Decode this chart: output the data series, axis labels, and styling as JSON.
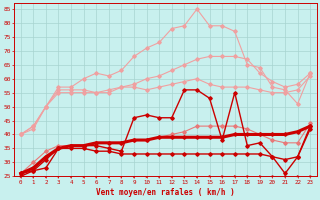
{
  "xlabel": "Vent moyen/en rafales ( km/h )",
  "background_color": "#c8f0ee",
  "grid_color": "#a8d4d0",
  "x_ticks": [
    0,
    1,
    2,
    3,
    4,
    5,
    6,
    7,
    8,
    9,
    10,
    11,
    12,
    13,
    14,
    15,
    16,
    17,
    18,
    19,
    20,
    21,
    22,
    23
  ],
  "ylim": [
    25,
    87
  ],
  "yticks": [
    25,
    30,
    35,
    40,
    45,
    50,
    55,
    60,
    65,
    70,
    75,
    80,
    85
  ],
  "line_light1": {
    "color": "#f0a0a0",
    "lw": 0.8,
    "marker": "D",
    "ms": 1.8,
    "values": [
      40,
      43,
      50,
      56,
      56,
      56,
      55,
      55,
      57,
      58,
      60,
      61,
      63,
      65,
      67,
      68,
      68,
      68,
      67,
      62,
      59,
      57,
      58,
      62
    ]
  },
  "line_light2": {
    "color": "#f0a0a0",
    "lw": 0.8,
    "marker": "D",
    "ms": 1.8,
    "values": [
      40,
      43,
      50,
      57,
      57,
      60,
      62,
      61,
      63,
      68,
      71,
      73,
      78,
      79,
      85,
      79,
      79,
      77,
      65,
      64,
      57,
      56,
      51,
      62
    ]
  },
  "line_light3": {
    "color": "#f0a0a0",
    "lw": 0.8,
    "marker": "D",
    "ms": 1.8,
    "values": [
      40,
      42,
      50,
      55,
      55,
      55,
      55,
      56,
      57,
      57,
      56,
      57,
      58,
      59,
      60,
      58,
      57,
      57,
      57,
      56,
      55,
      55,
      56,
      61
    ]
  },
  "line_medium1": {
    "color": "#e87878",
    "lw": 0.8,
    "marker": "D",
    "ms": 1.8,
    "values": [
      26,
      30,
      34,
      36,
      36,
      36,
      37,
      37,
      37,
      38,
      38,
      39,
      40,
      41,
      43,
      43,
      43,
      43,
      42,
      40,
      38,
      37,
      37,
      44
    ]
  },
  "line_bold": {
    "color": "#cc0000",
    "lw": 2.2,
    "marker": "D",
    "ms": 1.8,
    "values": [
      26,
      28,
      32,
      35,
      36,
      36,
      37,
      37,
      37,
      38,
      38,
      39,
      39,
      39,
      39,
      39,
      39,
      40,
      40,
      40,
      40,
      40,
      41,
      43
    ]
  },
  "line_dark1": {
    "color": "#cc0000",
    "lw": 1.0,
    "marker": "D",
    "ms": 1.8,
    "values": [
      26,
      27,
      28,
      35,
      35,
      35,
      34,
      34,
      33,
      33,
      33,
      33,
      33,
      33,
      33,
      33,
      33,
      33,
      33,
      33,
      32,
      31,
      32,
      42
    ]
  },
  "line_dark2": {
    "color": "#cc0000",
    "lw": 1.0,
    "marker": "D",
    "ms": 1.8,
    "values": [
      25,
      27,
      31,
      35,
      36,
      36,
      36,
      35,
      34,
      46,
      47,
      46,
      46,
      56,
      56,
      53,
      38,
      55,
      36,
      37,
      32,
      26,
      32,
      43
    ]
  },
  "figsize": [
    3.2,
    2.0
  ],
  "dpi": 100
}
